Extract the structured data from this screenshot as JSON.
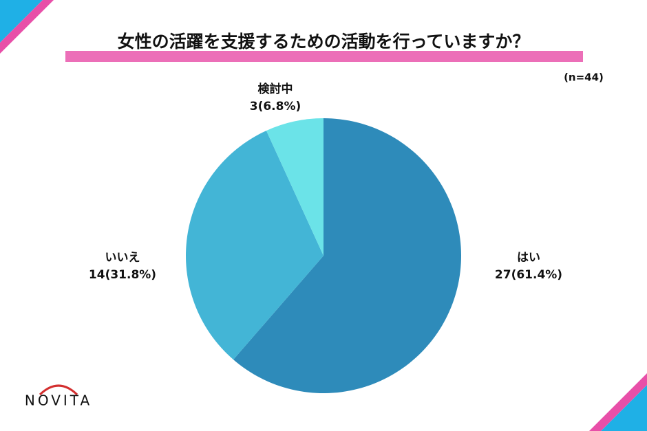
{
  "chart_data": {
    "type": "pie",
    "title": "女性の活躍を支援するための活動を行っていますか？",
    "subtitle": "(n=44)",
    "brand": "NOVITA",
    "categories": [
      "はい",
      "いいえ",
      "検討中"
    ],
    "values": [
      27,
      14,
      3
    ],
    "value_labels": [
      "27(61.4%)",
      "14(31.8%)",
      "3(6.8%)"
    ],
    "colors": [
      "#2e8bba",
      "#43b5d6",
      "#6be3e8"
    ]
  }
}
